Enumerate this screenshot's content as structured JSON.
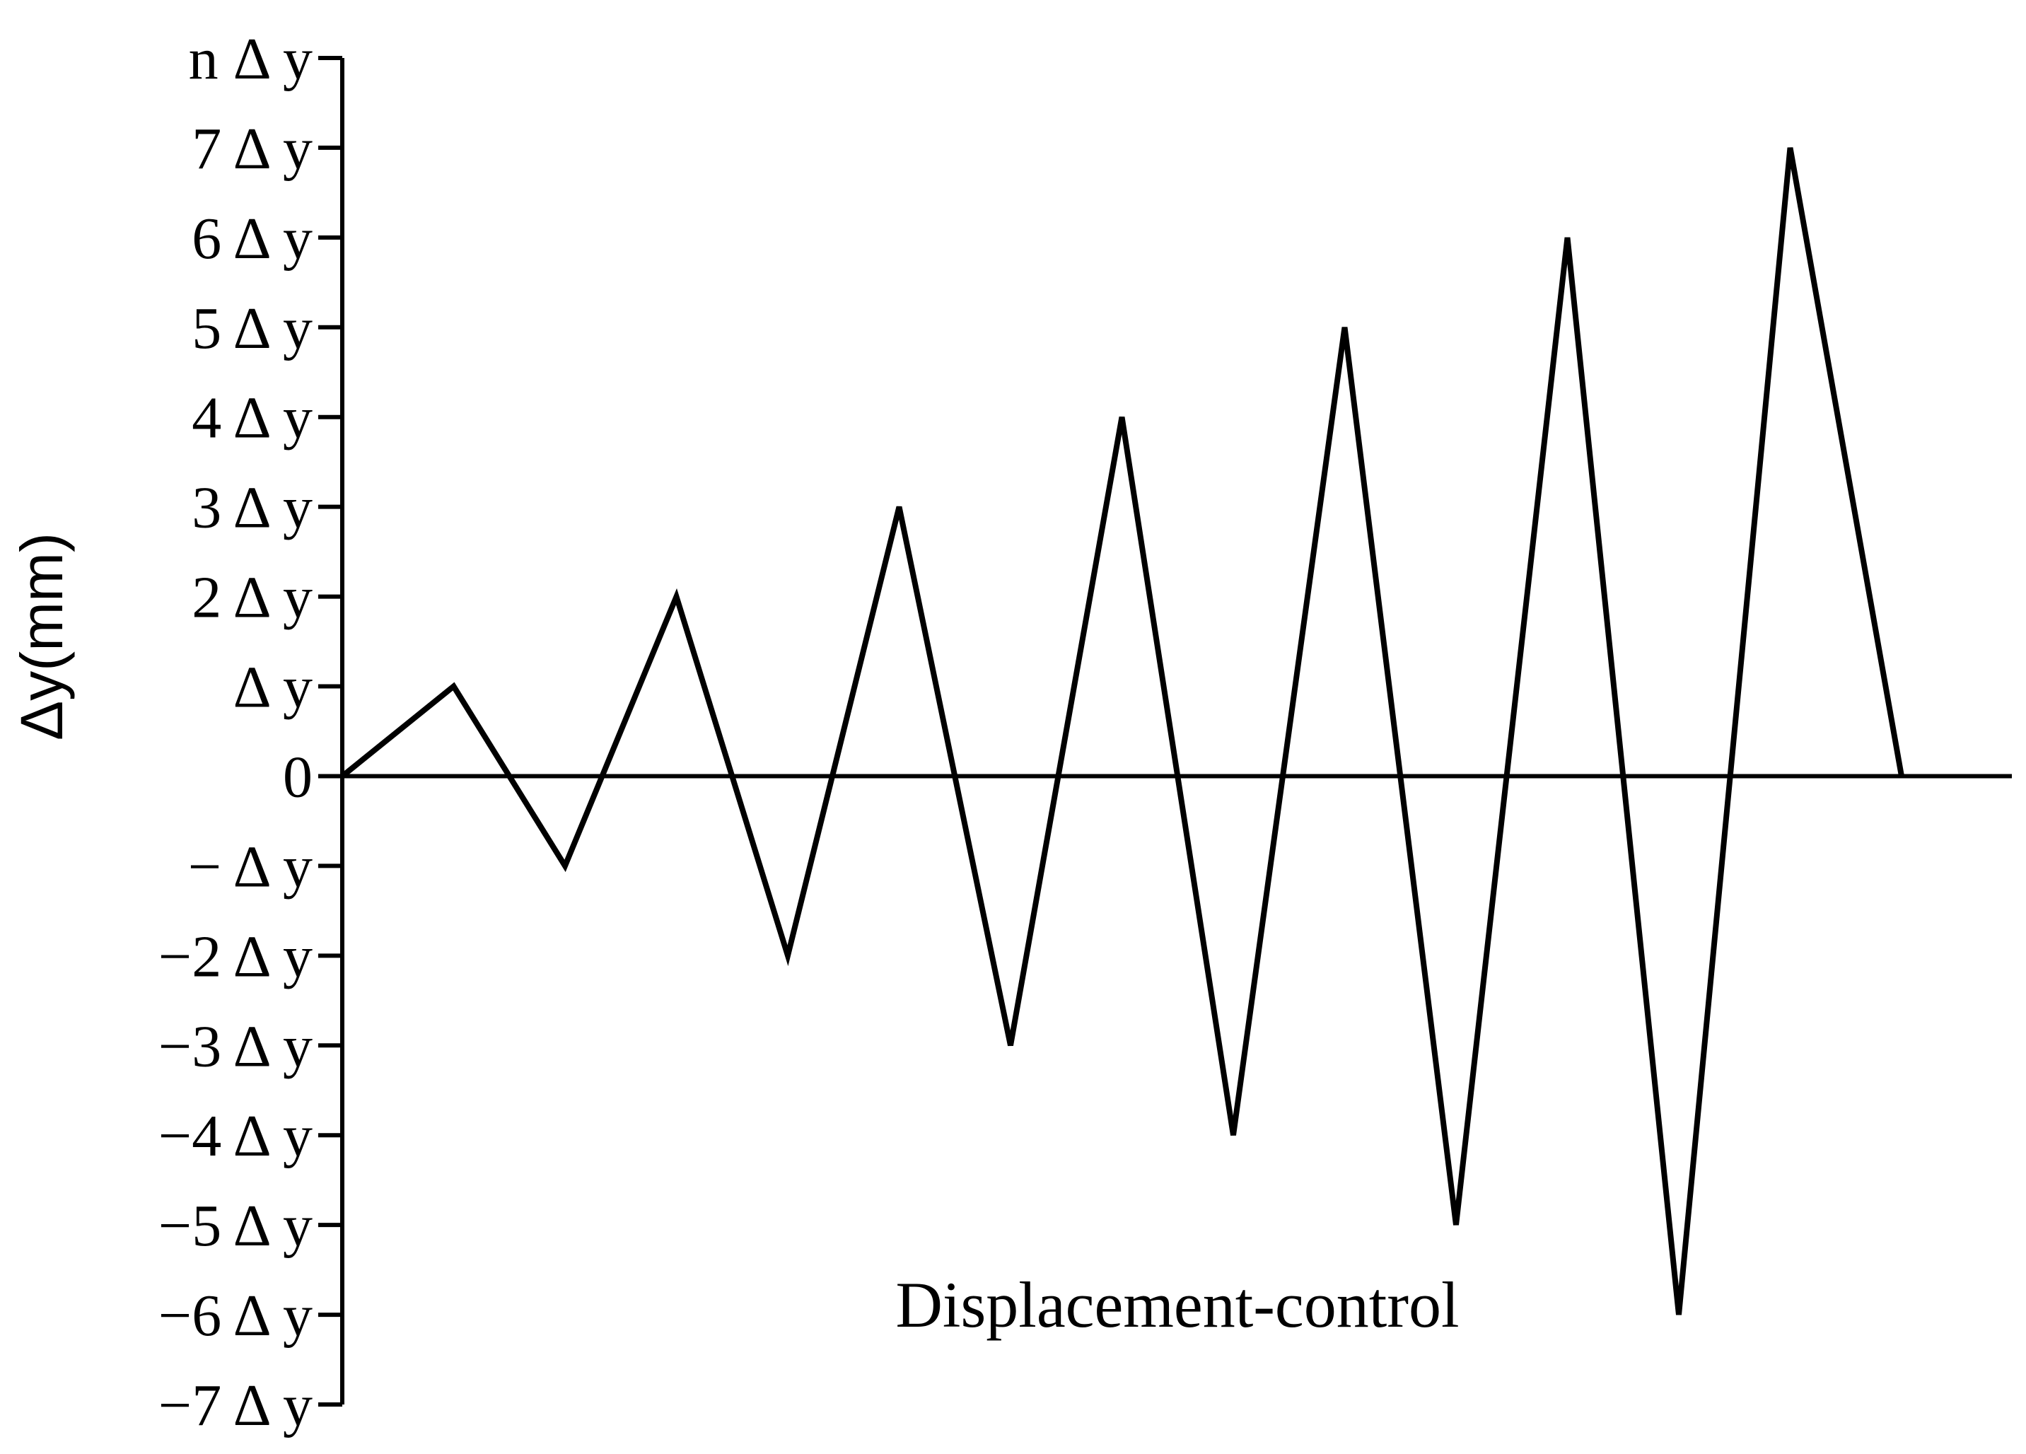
{
  "chart_data": {
    "type": "line",
    "title": "",
    "xlabel": "",
    "ylabel": "Δy(mm)",
    "annotation": "Displacement-control",
    "yticks": [
      {
        "value": 8,
        "label": "n Δ y"
      },
      {
        "value": 7,
        "label": "7 Δ y"
      },
      {
        "value": 6,
        "label": "6 Δ y"
      },
      {
        "value": 5,
        "label": "5 Δ y"
      },
      {
        "value": 4,
        "label": "4 Δ y"
      },
      {
        "value": 3,
        "label": "3 Δ y"
      },
      {
        "value": 2,
        "label": "2 Δ y"
      },
      {
        "value": 1,
        "label": "Δ y"
      },
      {
        "value": 0,
        "label": "0"
      },
      {
        "value": -1,
        "label": "− Δ y"
      },
      {
        "value": -2,
        "label": "−2 Δ y"
      },
      {
        "value": -3,
        "label": "−3 Δ y"
      },
      {
        "value": -4,
        "label": "−4 Δ y"
      },
      {
        "value": -5,
        "label": "−5 Δ y"
      },
      {
        "value": -6,
        "label": "−6 Δ y"
      },
      {
        "value": -7,
        "label": "−7 Δ y"
      }
    ],
    "ylim": [
      -7,
      8
    ],
    "xlim": [
      0,
      15
    ],
    "grid": false,
    "series": [
      {
        "x": [
          0,
          1,
          2,
          3,
          4,
          5,
          6,
          7,
          8,
          9,
          10,
          11,
          12,
          13,
          14
        ],
        "values": [
          0,
          1,
          -1,
          2,
          -2,
          3,
          -3,
          4,
          -4,
          5,
          -5,
          6,
          -6,
          7,
          0
        ]
      }
    ]
  }
}
